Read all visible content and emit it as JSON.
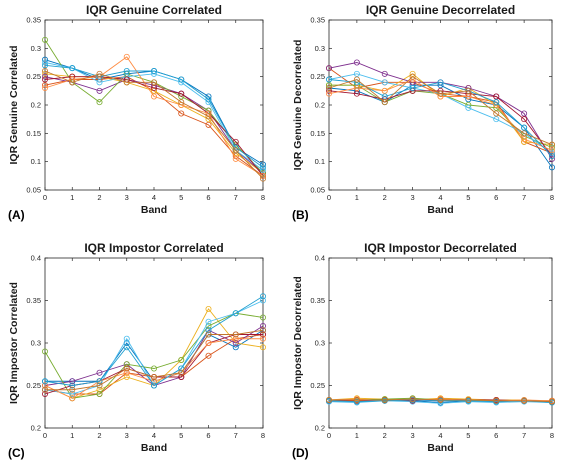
{
  "chart_data": [
    {
      "panel": "(A)",
      "type": "line",
      "title": "IQR Genuine Correlated",
      "xlabel": "Band",
      "ylabel": "IQR Genuine Correlated",
      "x": [
        0,
        1,
        2,
        3,
        4,
        5,
        6,
        7,
        8
      ],
      "xlim": [
        0,
        8
      ],
      "ylim": [
        0.05,
        0.35
      ],
      "yticks": [
        0.05,
        0.1,
        0.15,
        0.2,
        0.25,
        0.3,
        0.35
      ],
      "ytick_labels": [
        "0.05",
        "0.1",
        "0.15",
        "0.2",
        "0.25",
        "0.3",
        "0.35"
      ],
      "grid": false,
      "series": [
        {
          "color": "#0072BD",
          "values": [
            0.28,
            0.265,
            0.245,
            0.255,
            0.26,
            0.245,
            0.215,
            0.125,
            0.095
          ]
        },
        {
          "color": "#D95319",
          "values": [
            0.235,
            0.245,
            0.245,
            0.25,
            0.225,
            0.185,
            0.165,
            0.11,
            0.075
          ]
        },
        {
          "color": "#EDB120",
          "values": [
            0.255,
            0.25,
            0.25,
            0.24,
            0.225,
            0.2,
            0.175,
            0.115,
            0.08
          ]
        },
        {
          "color": "#7E2F8E",
          "values": [
            0.25,
            0.24,
            0.225,
            0.245,
            0.235,
            0.22,
            0.19,
            0.12,
            0.08
          ]
        },
        {
          "color": "#77AC30",
          "values": [
            0.315,
            0.24,
            0.205,
            0.255,
            0.24,
            0.215,
            0.19,
            0.13,
            0.08
          ]
        },
        {
          "color": "#4DBEEE",
          "values": [
            0.275,
            0.265,
            0.24,
            0.25,
            0.255,
            0.24,
            0.205,
            0.12,
            0.085
          ]
        },
        {
          "color": "#A2142F",
          "values": [
            0.245,
            0.25,
            0.25,
            0.245,
            0.23,
            0.22,
            0.185,
            0.135,
            0.075
          ]
        },
        {
          "color": "#ff8c42",
          "values": [
            0.23,
            0.245,
            0.25,
            0.285,
            0.215,
            0.2,
            0.185,
            0.105,
            0.075
          ]
        },
        {
          "color": "#1f9fd0",
          "values": [
            0.27,
            0.265,
            0.25,
            0.26,
            0.26,
            0.245,
            0.21,
            0.125,
            0.09
          ]
        },
        {
          "color": "#c2762b",
          "values": [
            0.26,
            0.24,
            0.255,
            0.24,
            0.24,
            0.205,
            0.18,
            0.12,
            0.07
          ]
        }
      ]
    },
    {
      "panel": "(B)",
      "type": "line",
      "title": "IQR Genuine Decorrelated",
      "xlabel": "Band",
      "ylabel": "IQR Genuine Decorrelated",
      "x": [
        0,
        1,
        2,
        3,
        4,
        5,
        6,
        7,
        8
      ],
      "xlim": [
        0,
        8
      ],
      "ylim": [
        0.05,
        0.35
      ],
      "yticks": [
        0.05,
        0.1,
        0.15,
        0.2,
        0.25,
        0.3,
        0.35
      ],
      "ytick_labels": [
        "0.05",
        "0.1",
        "0.15",
        "0.2",
        "0.25",
        "0.3",
        "0.35"
      ],
      "grid": false,
      "series": [
        {
          "color": "#0072BD",
          "values": [
            0.23,
            0.225,
            0.205,
            0.235,
            0.235,
            0.21,
            0.2,
            0.16,
            0.09
          ]
        },
        {
          "color": "#D95319",
          "values": [
            0.265,
            0.23,
            0.24,
            0.24,
            0.22,
            0.215,
            0.205,
            0.135,
            0.115
          ]
        },
        {
          "color": "#EDB120",
          "values": [
            0.235,
            0.235,
            0.225,
            0.255,
            0.215,
            0.23,
            0.2,
            0.135,
            0.13
          ]
        },
        {
          "color": "#7E2F8E",
          "values": [
            0.265,
            0.275,
            0.255,
            0.24,
            0.24,
            0.23,
            0.215,
            0.185,
            0.105
          ]
        },
        {
          "color": "#77AC30",
          "values": [
            0.235,
            0.235,
            0.205,
            0.225,
            0.22,
            0.2,
            0.195,
            0.145,
            0.125
          ]
        },
        {
          "color": "#4DBEEE",
          "values": [
            0.245,
            0.255,
            0.24,
            0.23,
            0.22,
            0.195,
            0.175,
            0.15,
            0.115
          ]
        },
        {
          "color": "#A2142F",
          "values": [
            0.225,
            0.22,
            0.21,
            0.225,
            0.225,
            0.22,
            0.215,
            0.175,
            0.11
          ]
        },
        {
          "color": "#ff8c42",
          "values": [
            0.22,
            0.23,
            0.225,
            0.245,
            0.215,
            0.215,
            0.2,
            0.14,
            0.12
          ]
        },
        {
          "color": "#1f9fd0",
          "values": [
            0.245,
            0.24,
            0.215,
            0.23,
            0.24,
            0.225,
            0.205,
            0.16,
            0.11
          ]
        },
        {
          "color": "#c2762b",
          "values": [
            0.23,
            0.245,
            0.205,
            0.25,
            0.22,
            0.225,
            0.185,
            0.15,
            0.13
          ]
        }
      ]
    },
    {
      "panel": "(C)",
      "type": "line",
      "title": "IQR Impostor Correlated",
      "xlabel": "Band",
      "ylabel": "IQR Impostor Correlated",
      "x": [
        0,
        1,
        2,
        3,
        4,
        5,
        6,
        7,
        8
      ],
      "xlim": [
        0,
        8
      ],
      "ylim": [
        0.2,
        0.4
      ],
      "yticks": [
        0.2,
        0.25,
        0.3,
        0.35,
        0.4
      ],
      "ytick_labels": [
        "0.2",
        "0.25",
        "0.3",
        "0.35",
        "0.4"
      ],
      "grid": false,
      "series": [
        {
          "color": "#0072BD",
          "values": [
            0.255,
            0.255,
            0.255,
            0.3,
            0.255,
            0.265,
            0.31,
            0.295,
            0.315
          ]
        },
        {
          "color": "#D95319",
          "values": [
            0.245,
            0.24,
            0.24,
            0.265,
            0.26,
            0.26,
            0.285,
            0.305,
            0.31
          ]
        },
        {
          "color": "#EDB120",
          "values": [
            0.25,
            0.235,
            0.245,
            0.26,
            0.25,
            0.28,
            0.34,
            0.3,
            0.295
          ]
        },
        {
          "color": "#7E2F8E",
          "values": [
            0.25,
            0.255,
            0.265,
            0.275,
            0.25,
            0.26,
            0.315,
            0.3,
            0.32
          ]
        },
        {
          "color": "#77AC30",
          "values": [
            0.29,
            0.235,
            0.24,
            0.275,
            0.27,
            0.28,
            0.32,
            0.335,
            0.33
          ]
        },
        {
          "color": "#4DBEEE",
          "values": [
            0.245,
            0.24,
            0.25,
            0.305,
            0.25,
            0.27,
            0.325,
            0.335,
            0.35
          ]
        },
        {
          "color": "#A2142F",
          "values": [
            0.24,
            0.25,
            0.255,
            0.27,
            0.26,
            0.26,
            0.3,
            0.31,
            0.31
          ]
        },
        {
          "color": "#ff8c42",
          "values": [
            0.25,
            0.235,
            0.255,
            0.265,
            0.255,
            0.265,
            0.3,
            0.305,
            0.305
          ]
        },
        {
          "color": "#1f9fd0",
          "values": [
            0.255,
            0.25,
            0.255,
            0.295,
            0.25,
            0.27,
            0.315,
            0.335,
            0.355
          ]
        },
        {
          "color": "#c2762b",
          "values": [
            0.245,
            0.245,
            0.25,
            0.27,
            0.26,
            0.265,
            0.31,
            0.31,
            0.315
          ]
        }
      ]
    },
    {
      "panel": "(D)",
      "type": "line",
      "title": "IQR Impostor Decorrelated",
      "xlabel": "Band",
      "ylabel": "IQR Impostor Decorrelated",
      "x": [
        0,
        1,
        2,
        3,
        4,
        5,
        6,
        7,
        8
      ],
      "xlim": [
        0,
        8
      ],
      "ylim": [
        0.2,
        0.4
      ],
      "yticks": [
        0.2,
        0.25,
        0.3,
        0.35,
        0.4
      ],
      "ytick_labels": [
        "0.2",
        "0.25",
        "0.3",
        "0.35",
        "0.4"
      ],
      "grid": false,
      "series": [
        {
          "color": "#0072BD",
          "values": [
            0.232,
            0.232,
            0.233,
            0.232,
            0.23,
            0.232,
            0.231,
            0.232,
            0.231
          ]
        },
        {
          "color": "#D95319",
          "values": [
            0.233,
            0.232,
            0.233,
            0.233,
            0.233,
            0.232,
            0.233,
            0.232,
            0.232
          ]
        },
        {
          "color": "#EDB120",
          "values": [
            0.233,
            0.235,
            0.234,
            0.233,
            0.235,
            0.234,
            0.233,
            0.233,
            0.231
          ]
        },
        {
          "color": "#7E2F8E",
          "values": [
            0.232,
            0.231,
            0.233,
            0.233,
            0.232,
            0.233,
            0.232,
            0.232,
            0.232
          ]
        },
        {
          "color": "#77AC30",
          "values": [
            0.233,
            0.233,
            0.234,
            0.235,
            0.233,
            0.232,
            0.232,
            0.232,
            0.232
          ]
        },
        {
          "color": "#4DBEEE",
          "values": [
            0.231,
            0.23,
            0.232,
            0.231,
            0.229,
            0.231,
            0.23,
            0.231,
            0.23
          ]
        },
        {
          "color": "#A2142F",
          "values": [
            0.232,
            0.233,
            0.233,
            0.232,
            0.234,
            0.233,
            0.233,
            0.232,
            0.231
          ]
        },
        {
          "color": "#ff8c42",
          "values": [
            0.233,
            0.234,
            0.232,
            0.233,
            0.234,
            0.233,
            0.232,
            0.233,
            0.232
          ]
        },
        {
          "color": "#1f9fd0",
          "values": [
            0.232,
            0.231,
            0.232,
            0.233,
            0.232,
            0.232,
            0.231,
            0.232,
            0.23
          ]
        },
        {
          "color": "#c2762b",
          "values": [
            0.233,
            0.233,
            0.233,
            0.234,
            0.233,
            0.233,
            0.232,
            0.232,
            0.231
          ]
        }
      ]
    }
  ]
}
